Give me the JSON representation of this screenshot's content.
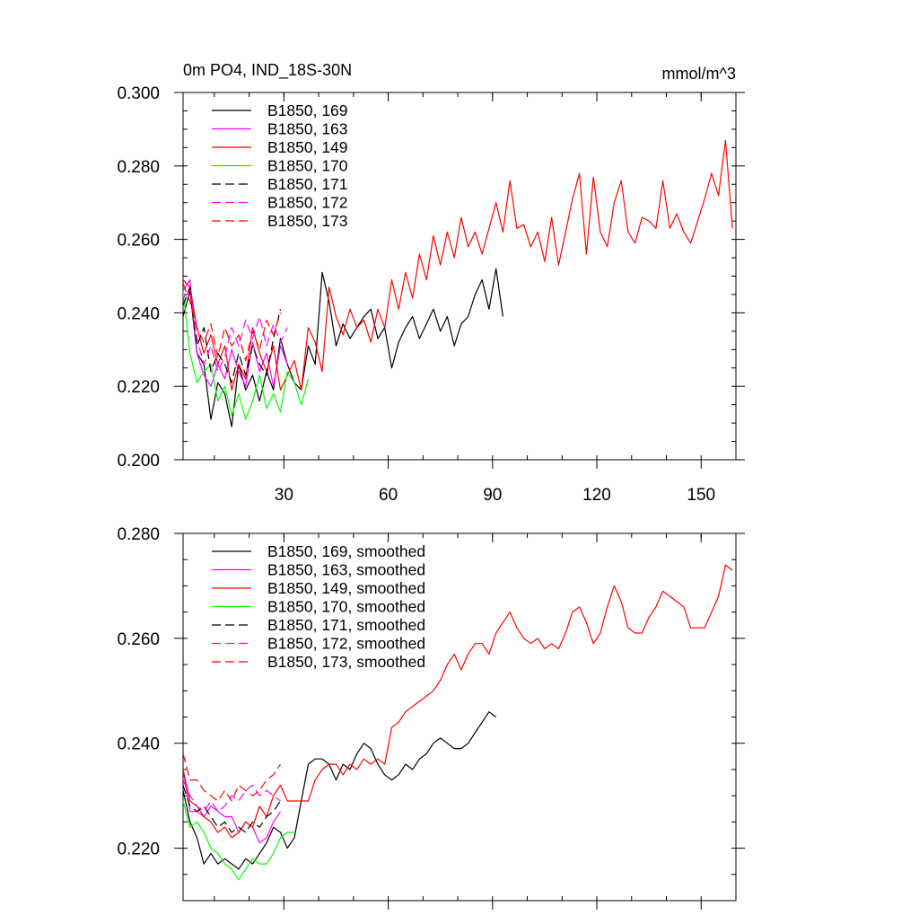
{
  "chart_data": [
    {
      "type": "line",
      "title": "0m PO4, IND_18S-30N",
      "units": "mmol/m^3",
      "xlim": [
        1,
        160
      ],
      "ylim": [
        0.2,
        0.3
      ],
      "x_ticks": [
        30,
        60,
        90,
        120,
        150
      ],
      "x_tick_labels": [
        "30",
        "60",
        "90",
        "120",
        "150"
      ],
      "y_ticks": [
        0.2,
        0.22,
        0.24,
        0.26,
        0.28,
        0.3
      ],
      "y_tick_labels": [
        "0.200",
        "0.220",
        "0.240",
        "0.260",
        "0.280",
        "0.300"
      ],
      "legend_position": "top-left",
      "series": [
        {
          "name": "B1850, 169",
          "color": "#000000",
          "dash": "solid",
          "x": [
            1,
            3,
            5,
            7,
            9,
            11,
            13,
            15,
            17,
            19,
            21,
            23,
            25,
            27,
            29,
            31,
            33,
            35,
            37,
            39,
            41,
            43,
            45,
            47,
            49,
            51,
            53,
            55,
            57,
            59,
            61,
            63,
            65,
            67,
            69,
            71,
            73,
            75,
            77,
            79,
            81,
            83,
            85,
            87,
            89,
            91,
            93
          ],
          "y": [
            0.239,
            0.246,
            0.229,
            0.226,
            0.211,
            0.221,
            0.218,
            0.209,
            0.226,
            0.219,
            0.223,
            0.216,
            0.224,
            0.219,
            0.233,
            0.226,
            0.221,
            0.219,
            0.231,
            0.226,
            0.251,
            0.243,
            0.231,
            0.237,
            0.233,
            0.236,
            0.239,
            0.241,
            0.233,
            0.236,
            0.225,
            0.232,
            0.236,
            0.239,
            0.233,
            0.237,
            0.241,
            0.235,
            0.239,
            0.231,
            0.237,
            0.239,
            0.245,
            0.249,
            0.241,
            0.252,
            0.239
          ]
        },
        {
          "name": "B1850, 163",
          "color": "#ff00ff",
          "dash": "solid",
          "x": [
            1,
            3,
            5,
            7,
            9,
            11,
            13,
            15,
            17,
            19,
            21,
            23,
            25,
            27,
            29,
            31
          ],
          "y": [
            0.246,
            0.249,
            0.229,
            0.223,
            0.22,
            0.226,
            0.222,
            0.23,
            0.224,
            0.22,
            0.232,
            0.224,
            0.229,
            0.22,
            0.231,
            0.226
          ]
        },
        {
          "name": "B1850, 149",
          "color": "#ff0000",
          "dash": "solid",
          "x": [
            1,
            3,
            5,
            7,
            9,
            11,
            13,
            15,
            17,
            19,
            21,
            23,
            25,
            27,
            29,
            31,
            33,
            35,
            37,
            39,
            41,
            43,
            45,
            47,
            49,
            51,
            53,
            55,
            57,
            59,
            61,
            63,
            65,
            67,
            69,
            71,
            73,
            75,
            77,
            79,
            81,
            83,
            85,
            87,
            89,
            91,
            93,
            95,
            97,
            99,
            101,
            103,
            105,
            107,
            109,
            111,
            113,
            115,
            117,
            119,
            121,
            123,
            125,
            127,
            129,
            131,
            133,
            135,
            137,
            139,
            141,
            143,
            145,
            147,
            149,
            151,
            153,
            155,
            157,
            159
          ],
          "y": [
            0.249,
            0.247,
            0.236,
            0.229,
            0.234,
            0.226,
            0.231,
            0.219,
            0.226,
            0.222,
            0.236,
            0.229,
            0.224,
            0.231,
            0.219,
            0.223,
            0.227,
            0.219,
            0.236,
            0.232,
            0.224,
            0.247,
            0.239,
            0.234,
            0.241,
            0.236,
            0.238,
            0.232,
            0.241,
            0.236,
            0.249,
            0.241,
            0.251,
            0.244,
            0.256,
            0.249,
            0.261,
            0.253,
            0.262,
            0.255,
            0.266,
            0.258,
            0.262,
            0.256,
            0.263,
            0.27,
            0.262,
            0.276,
            0.263,
            0.264,
            0.258,
            0.262,
            0.254,
            0.266,
            0.253,
            0.262,
            0.271,
            0.278,
            0.256,
            0.277,
            0.262,
            0.258,
            0.27,
            0.276,
            0.262,
            0.259,
            0.266,
            0.265,
            0.263,
            0.276,
            0.263,
            0.267,
            0.262,
            0.259,
            0.265,
            0.271,
            0.278,
            0.272,
            0.287,
            0.263
          ]
        },
        {
          "name": "B1850, 170",
          "color": "#00ff00",
          "dash": "solid",
          "x": [
            1,
            3,
            5,
            7,
            9,
            11,
            13,
            15,
            17,
            19,
            21,
            23,
            25,
            27,
            29,
            31,
            33,
            35,
            37
          ],
          "y": [
            0.246,
            0.229,
            0.221,
            0.224,
            0.226,
            0.216,
            0.22,
            0.212,
            0.218,
            0.211,
            0.216,
            0.223,
            0.214,
            0.218,
            0.213,
            0.224,
            0.221,
            0.215,
            0.222
          ]
        },
        {
          "name": "B1850, 171",
          "color": "#000000",
          "dash": "dashed",
          "x": [
            1,
            3,
            5,
            7,
            9,
            11,
            13,
            15,
            17,
            19,
            21,
            23,
            25,
            27,
            29
          ],
          "y": [
            0.242,
            0.247,
            0.231,
            0.236,
            0.224,
            0.229,
            0.226,
            0.221,
            0.229,
            0.223,
            0.231,
            0.226,
            0.223,
            0.233,
            0.241
          ]
        },
        {
          "name": "B1850, 172",
          "color": "#ff00ff",
          "dash": "dashed",
          "x": [
            1,
            3,
            5,
            7,
            9,
            11,
            13,
            15,
            17,
            19,
            21,
            23,
            25,
            27,
            29,
            31
          ],
          "y": [
            0.244,
            0.246,
            0.233,
            0.226,
            0.231,
            0.224,
            0.228,
            0.236,
            0.231,
            0.238,
            0.233,
            0.239,
            0.231,
            0.237,
            0.232,
            0.236
          ]
        },
        {
          "name": "B1850, 173",
          "color": "#ff0000",
          "dash": "dashed",
          "x": [
            1,
            3,
            5,
            7,
            9,
            11,
            13,
            15,
            17,
            19,
            21,
            23,
            25,
            27,
            29
          ],
          "y": [
            0.248,
            0.243,
            0.236,
            0.232,
            0.237,
            0.228,
            0.236,
            0.231,
            0.234,
            0.227,
            0.235,
            0.23,
            0.238,
            0.234,
            0.24
          ]
        }
      ]
    },
    {
      "type": "line",
      "xlim": [
        1,
        160
      ],
      "ylim": [
        0.21,
        0.28
      ],
      "x_ticks": [
        30,
        60,
        90,
        120,
        150
      ],
      "y_ticks": [
        0.22,
        0.24,
        0.26,
        0.28
      ],
      "y_tick_labels": [
        "0.220",
        "0.240",
        "0.260",
        "0.280"
      ],
      "legend_position": "top-left",
      "series": [
        {
          "name": "B1850, 169, smoothed",
          "color": "#000000",
          "dash": "solid",
          "x": [
            1,
            3,
            5,
            7,
            9,
            11,
            13,
            15,
            17,
            19,
            21,
            23,
            25,
            27,
            29,
            31,
            33,
            35,
            37,
            39,
            41,
            43,
            45,
            47,
            49,
            51,
            53,
            55,
            57,
            59,
            61,
            63,
            65,
            67,
            69,
            71,
            73,
            75,
            77,
            79,
            81,
            83,
            85,
            87,
            89,
            91
          ],
          "y": [
            0.231,
            0.225,
            0.222,
            0.217,
            0.219,
            0.217,
            0.218,
            0.217,
            0.216,
            0.218,
            0.217,
            0.219,
            0.221,
            0.224,
            0.223,
            0.22,
            0.222,
            0.229,
            0.236,
            0.237,
            0.237,
            0.236,
            0.233,
            0.236,
            0.235,
            0.238,
            0.24,
            0.239,
            0.236,
            0.234,
            0.233,
            0.234,
            0.236,
            0.235,
            0.237,
            0.238,
            0.24,
            0.241,
            0.24,
            0.239,
            0.239,
            0.24,
            0.242,
            0.244,
            0.246,
            0.245
          ]
        },
        {
          "name": "B1850, 163, smoothed",
          "color": "#ff00ff",
          "dash": "solid",
          "x": [
            1,
            3,
            5,
            7,
            9,
            11,
            13,
            15,
            17,
            19,
            21,
            23,
            25,
            27,
            29
          ],
          "y": [
            0.235,
            0.227,
            0.227,
            0.226,
            0.228,
            0.227,
            0.226,
            0.226,
            0.223,
            0.225,
            0.224,
            0.221,
            0.222,
            0.225,
            0.227
          ]
        },
        {
          "name": "B1850, 149, smoothed",
          "color": "#ff0000",
          "dash": "solid",
          "x": [
            1,
            3,
            5,
            7,
            9,
            11,
            13,
            15,
            17,
            19,
            21,
            23,
            25,
            27,
            29,
            31,
            33,
            35,
            37,
            39,
            41,
            43,
            45,
            47,
            49,
            51,
            53,
            55,
            57,
            59,
            61,
            63,
            65,
            67,
            69,
            71,
            73,
            75,
            77,
            79,
            81,
            83,
            85,
            87,
            89,
            91,
            93,
            95,
            97,
            99,
            101,
            103,
            105,
            107,
            109,
            111,
            113,
            115,
            117,
            119,
            121,
            123,
            125,
            127,
            129,
            131,
            133,
            135,
            137,
            139,
            141,
            143,
            145,
            147,
            149,
            151,
            153,
            155,
            157,
            159
          ],
          "y": [
            0.235,
            0.229,
            0.228,
            0.226,
            0.225,
            0.223,
            0.224,
            0.222,
            0.223,
            0.225,
            0.224,
            0.228,
            0.226,
            0.23,
            0.232,
            0.229,
            0.229,
            0.229,
            0.229,
            0.233,
            0.235,
            0.236,
            0.236,
            0.234,
            0.236,
            0.235,
            0.237,
            0.236,
            0.237,
            0.236,
            0.243,
            0.244,
            0.246,
            0.247,
            0.248,
            0.249,
            0.25,
            0.252,
            0.255,
            0.257,
            0.254,
            0.257,
            0.259,
            0.259,
            0.257,
            0.261,
            0.263,
            0.265,
            0.262,
            0.26,
            0.259,
            0.26,
            0.258,
            0.259,
            0.258,
            0.261,
            0.265,
            0.266,
            0.263,
            0.259,
            0.261,
            0.266,
            0.27,
            0.267,
            0.262,
            0.261,
            0.261,
            0.264,
            0.266,
            0.269,
            0.268,
            0.267,
            0.266,
            0.262,
            0.262,
            0.262,
            0.265,
            0.268,
            0.274,
            0.273
          ]
        },
        {
          "name": "B1850, 170, smoothed",
          "color": "#00ff00",
          "dash": "solid",
          "x": [
            1,
            3,
            5,
            7,
            9,
            11,
            13,
            15,
            17,
            19,
            21,
            23,
            25,
            27,
            29,
            31,
            33
          ],
          "y": [
            0.229,
            0.224,
            0.225,
            0.223,
            0.22,
            0.219,
            0.217,
            0.216,
            0.214,
            0.216,
            0.218,
            0.217,
            0.217,
            0.219,
            0.222,
            0.223,
            0.223
          ]
        },
        {
          "name": "B1850, 171, smoothed",
          "color": "#000000",
          "dash": "dashed",
          "x": [
            1,
            3,
            5,
            7,
            9,
            11,
            13,
            15,
            17,
            19,
            21,
            23,
            25,
            27,
            29
          ],
          "y": [
            0.232,
            0.228,
            0.227,
            0.228,
            0.226,
            0.224,
            0.225,
            0.223,
            0.224,
            0.223,
            0.225,
            0.224,
            0.226,
            0.227,
            0.229
          ]
        },
        {
          "name": "B1850, 172, smoothed",
          "color": "#ff00ff",
          "dash": "dashed",
          "x": [
            1,
            3,
            5,
            7,
            9,
            11,
            13,
            15,
            17,
            19,
            21,
            23,
            25,
            27,
            29
          ],
          "y": [
            0.233,
            0.23,
            0.228,
            0.227,
            0.229,
            0.227,
            0.228,
            0.23,
            0.229,
            0.231,
            0.232,
            0.23,
            0.231,
            0.23,
            0.229
          ]
        },
        {
          "name": "B1850, 173, smoothed",
          "color": "#ff0000",
          "dash": "dashed",
          "x": [
            1,
            3,
            5,
            7,
            9,
            11,
            13,
            15,
            17,
            19,
            21,
            23,
            25,
            27,
            29
          ],
          "y": [
            0.238,
            0.233,
            0.233,
            0.231,
            0.23,
            0.229,
            0.231,
            0.229,
            0.232,
            0.231,
            0.23,
            0.231,
            0.233,
            0.234,
            0.236
          ]
        }
      ]
    }
  ]
}
